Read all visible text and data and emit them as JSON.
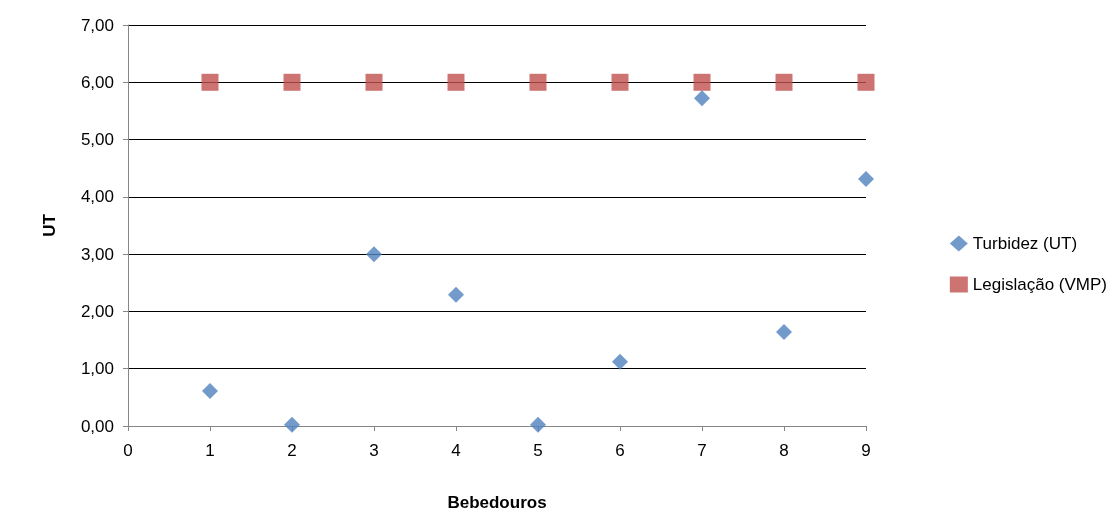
{
  "chart_data": {
    "type": "scatter",
    "xlabel": "Bebedouros",
    "ylabel": "UT",
    "x": [
      1,
      2,
      3,
      4,
      5,
      6,
      7,
      8,
      9
    ],
    "series": [
      {
        "name": "Turbidez (UT)",
        "color": "#4f81bd",
        "marker": "diamond",
        "values": [
          0.61,
          0.02,
          3.0,
          2.29,
          0.02,
          1.12,
          5.72,
          1.64,
          4.31
        ]
      },
      {
        "name": "Legislação (VMP)",
        "color": "#c0504d",
        "marker": "square",
        "values": [
          6,
          6,
          6,
          6,
          6,
          6,
          6,
          6,
          6
        ]
      }
    ],
    "xlim": [
      0,
      9
    ],
    "xticks": [
      0,
      1,
      2,
      3,
      4,
      5,
      6,
      7,
      8,
      9
    ],
    "ylim": [
      0,
      7
    ],
    "yticks": [
      {
        "value": 0,
        "label": "0,00"
      },
      {
        "value": 1,
        "label": "1,00"
      },
      {
        "value": 2,
        "label": "2,00"
      },
      {
        "value": 3,
        "label": "3,00"
      },
      {
        "value": 4,
        "label": "4,00"
      },
      {
        "value": 5,
        "label": "5,00"
      },
      {
        "value": 6,
        "label": "6,00"
      },
      {
        "value": 7,
        "label": "7,00"
      }
    ],
    "grid": "y",
    "legend": "right"
  }
}
